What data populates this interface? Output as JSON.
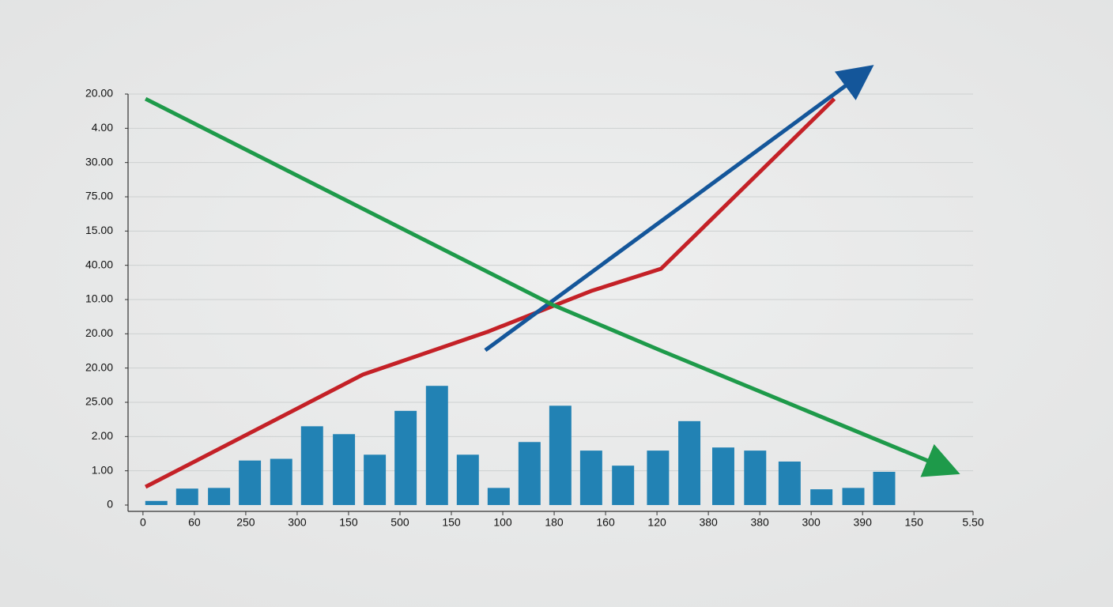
{
  "chart_data": {
    "type": "combo",
    "xlim": [
      -0.29,
      16.15
    ],
    "xticks": [
      0,
      {
        "value": 1,
        "label": "60"
      },
      {
        "value": 2,
        "label": "250"
      },
      {
        "value": 3,
        "label": "300"
      },
      {
        "value": 4,
        "label": "150"
      },
      {
        "value": 5,
        "label": "500"
      },
      {
        "value": 6,
        "label": "150"
      },
      {
        "value": 7,
        "label": "100"
      },
      {
        "value": 8,
        "label": "180"
      },
      {
        "value": 9,
        "label": "160"
      },
      {
        "value": 10,
        "label": "120"
      },
      {
        "value": 11,
        "label": "380"
      },
      {
        "value": 12,
        "label": "380"
      },
      {
        "value": 13,
        "label": "300"
      },
      {
        "value": 14,
        "label": "390"
      },
      {
        "value": 15,
        "label": "150"
      },
      {
        "value": 16.15,
        "label": "5.50"
      }
    ],
    "ylim": [
      0,
      12
    ],
    "yticks": [
      0,
      {
        "value": 1,
        "label": "1.00"
      },
      {
        "value": 2,
        "label": "2.00"
      },
      {
        "value": 3,
        "label": "25.00"
      },
      {
        "value": 4,
        "label": "20.00"
      },
      {
        "value": 5,
        "label": "20.00"
      },
      {
        "value": 6,
        "label": "10.00"
      },
      {
        "value": 7,
        "label": "40.00"
      },
      {
        "value": 8,
        "label": "15.00"
      },
      {
        "value": 9,
        "label": "75.00"
      },
      {
        "value": 10,
        "label": "30.00"
      },
      {
        "value": 11,
        "label": "4.00"
      },
      {
        "value": 12,
        "label": "20.00"
      }
    ],
    "grid": true,
    "series": [
      {
        "type": "bar",
        "color": "#2282b4",
        "x": [
          0.26,
          0.86,
          1.48,
          2.08,
          2.69,
          3.29,
          3.91,
          4.51,
          5.11,
          5.72,
          6.32,
          6.92,
          7.52,
          8.12,
          8.72,
          9.34,
          10.02,
          10.63,
          11.29,
          11.91,
          12.58,
          13.2,
          13.82,
          14.42
        ],
        "values": [
          0.12,
          0.48,
          0.5,
          1.3,
          1.35,
          2.3,
          2.07,
          1.47,
          2.75,
          3.48,
          1.47,
          0.5,
          1.84,
          2.9,
          1.59,
          1.15,
          1.59,
          2.45,
          1.68,
          1.59,
          1.27,
          0.46,
          0.5,
          0.97
        ]
      },
      {
        "type": "line",
        "color": "#c42127",
        "arrow": false,
        "x": [
          0.05,
          4.28,
          6.69,
          8.72,
          10.08,
          13.45
        ],
        "values": [
          0.53,
          3.81,
          5.05,
          6.25,
          6.9,
          11.86
        ]
      },
      {
        "type": "line",
        "color": "#14569a",
        "arrow": true,
        "x": [
          6.66,
          13.83
        ],
        "values": [
          4.52,
          12.42
        ]
      },
      {
        "type": "line",
        "color": "#1e9a4a",
        "arrow": true,
        "x": [
          0.05,
          7.98,
          10.06,
          15.45
        ],
        "values": [
          11.86,
          5.84,
          4.52,
          1.18
        ]
      }
    ]
  }
}
